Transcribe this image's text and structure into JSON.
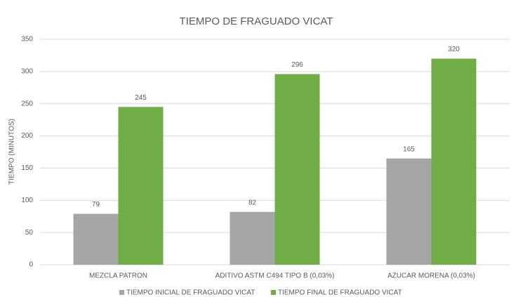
{
  "chart_data": {
    "type": "bar",
    "title": "TIEMPO DE FRAGUADO VICAT",
    "ylabel": "TIEMPO (MINUTOS)",
    "categories": [
      "MEZCLA PATRON",
      "ADITIVO ASTM C494 TIPO B (0,03%)",
      "AZUCAR MORENA (0,03%)"
    ],
    "series": [
      {
        "name": "TIEMPO INICIAL DE FRAGUADO VICAT",
        "color": "#a5a5a5",
        "values": [
          79,
          82,
          165
        ]
      },
      {
        "name": "TIEMPO FINAL DE FRAGUADO VICAT",
        "color": "#70ad47",
        "values": [
          245,
          296,
          320
        ]
      }
    ],
    "ylim": [
      0,
      350
    ],
    "yticks": [
      0,
      50,
      100,
      150,
      200,
      250,
      300,
      350
    ],
    "grid": true,
    "legend": "bottom"
  }
}
